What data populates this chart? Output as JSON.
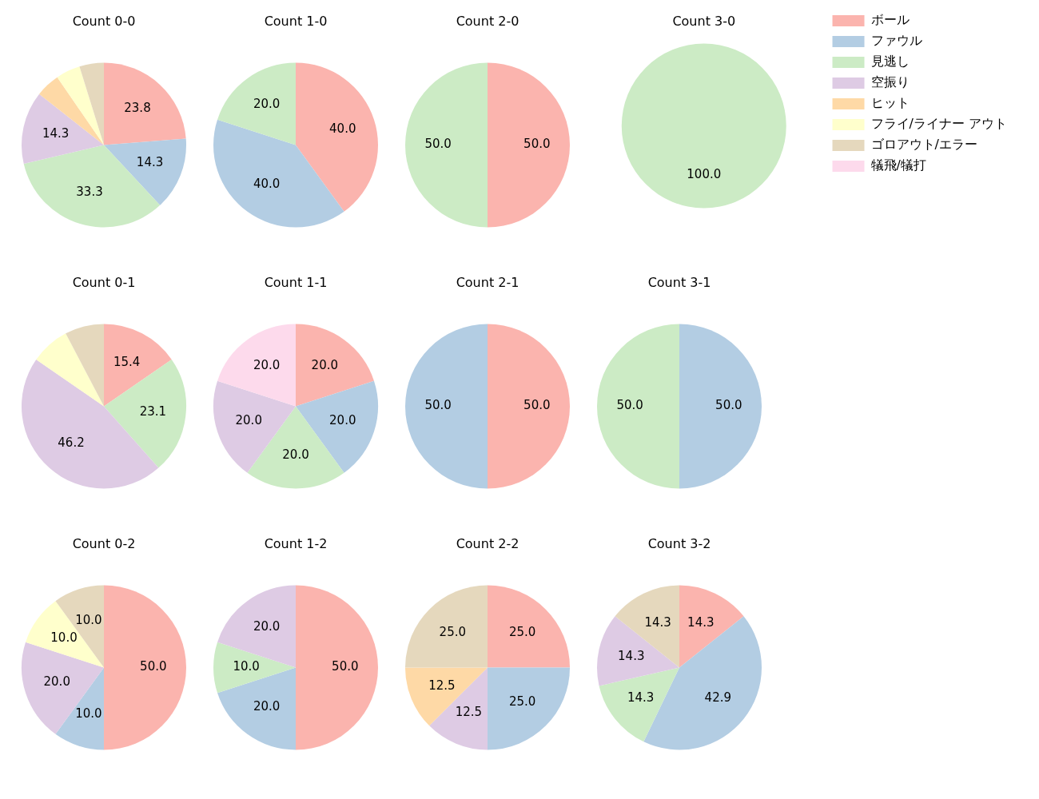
{
  "chart_data": [
    {
      "type": "pie",
      "title": "Count 0-0",
      "categories": [
        null,
        null,
        null,
        null,
        null,
        null,
        null,
        null
      ],
      "values": [
        23.8,
        14.3,
        33.3,
        14.3,
        4.8,
        4.8,
        4.8,
        0
      ],
      "colors": [
        "#fbb4ae",
        "#b3cde3",
        "#ccebc5",
        "#decbe4",
        "#fed9a6",
        "#ffffcc",
        "#e5d8bd",
        "#fddaec"
      ],
      "value_labels": [
        "23.8",
        "14.3",
        "33.3",
        "14.3",
        null,
        null,
        null,
        null
      ]
    },
    {
      "type": "pie",
      "title": "Count 1-0",
      "categories": [
        null,
        null,
        null,
        null,
        null,
        null,
        null,
        null
      ],
      "values": [
        40,
        40,
        20,
        0,
        0,
        0,
        0,
        0
      ],
      "colors": [
        "#fbb4ae",
        "#b3cde3",
        "#ccebc5",
        "#decbe4",
        "#fed9a6",
        "#ffffcc",
        "#e5d8bd",
        "#fddaec"
      ],
      "value_labels": [
        "40.0",
        "40.0",
        "20.0",
        null,
        null,
        null,
        null,
        null
      ]
    },
    {
      "type": "pie",
      "title": "Count 2-0",
      "categories": [
        null,
        null,
        null,
        null,
        null,
        null,
        null,
        null
      ],
      "values": [
        50,
        0,
        50,
        0,
        0,
        0,
        0,
        0
      ],
      "colors": [
        "#fbb4ae",
        "#b3cde3",
        "#ccebc5",
        "#decbe4",
        "#fed9a6",
        "#ffffcc",
        "#e5d8bd",
        "#fddaec"
      ],
      "value_labels": [
        "50.0",
        null,
        "50.0",
        null,
        null,
        null,
        null,
        null
      ]
    },
    {
      "type": "pie",
      "title": "Count 3-0",
      "categories": [
        "ボール",
        "ファウル",
        "見逃し",
        "空振り",
        "ヒット",
        "フライ/ライナー アウト",
        "ゴロアウト/エラー",
        "犠飛/犠打"
      ],
      "values": [
        0,
        0,
        100,
        0,
        0,
        0,
        0,
        0
      ],
      "colors": [
        "#fbb4ae",
        "#b3cde3",
        "#ccebc5",
        "#decbe4",
        "#fed9a6",
        "#ffffcc",
        "#e5d8bd",
        "#fddaec"
      ],
      "value_labels": [
        null,
        null,
        "100.0",
        null,
        null,
        null,
        null,
        null
      ],
      "legend": "right"
    },
    {
      "type": "pie",
      "title": "Count 0-1",
      "categories": [
        null,
        null,
        null,
        null,
        null,
        null,
        null,
        null
      ],
      "values": [
        15.4,
        0,
        23.1,
        46.2,
        0,
        7.7,
        7.7,
        0
      ],
      "colors": [
        "#fbb4ae",
        "#b3cde3",
        "#ccebc5",
        "#decbe4",
        "#fed9a6",
        "#ffffcc",
        "#e5d8bd",
        "#fddaec"
      ],
      "value_labels": [
        "15.4",
        null,
        "23.1",
        "46.2",
        null,
        null,
        null,
        null
      ]
    },
    {
      "type": "pie",
      "title": "Count 1-1",
      "categories": [
        null,
        null,
        null,
        null,
        null,
        null,
        null,
        null
      ],
      "values": [
        20,
        20,
        20,
        20,
        0,
        0,
        0,
        20
      ],
      "colors": [
        "#fbb4ae",
        "#b3cde3",
        "#ccebc5",
        "#decbe4",
        "#fed9a6",
        "#ffffcc",
        "#e5d8bd",
        "#fddaec"
      ],
      "value_labels": [
        "20.0",
        "20.0",
        "20.0",
        "20.0",
        null,
        null,
        null,
        "20.0"
      ]
    },
    {
      "type": "pie",
      "title": "Count 2-1",
      "categories": [
        null,
        null,
        null,
        null,
        null,
        null,
        null,
        null
      ],
      "values": [
        50,
        50,
        0,
        0,
        0,
        0,
        0,
        0
      ],
      "colors": [
        "#fbb4ae",
        "#b3cde3",
        "#ccebc5",
        "#decbe4",
        "#fed9a6",
        "#ffffcc",
        "#e5d8bd",
        "#fddaec"
      ],
      "value_labels": [
        "50.0",
        "50.0",
        null,
        null,
        null,
        null,
        null,
        null
      ]
    },
    {
      "type": "pie",
      "title": "Count 3-1",
      "categories": [
        null,
        null,
        null,
        null,
        null,
        null,
        null,
        null
      ],
      "values": [
        0,
        50,
        50,
        0,
        0,
        0,
        0,
        0
      ],
      "colors": [
        "#fbb4ae",
        "#b3cde3",
        "#ccebc5",
        "#decbe4",
        "#fed9a6",
        "#ffffcc",
        "#e5d8bd",
        "#fddaec"
      ],
      "value_labels": [
        null,
        "50.0",
        "50.0",
        null,
        null,
        null,
        null,
        null
      ]
    },
    {
      "type": "pie",
      "title": "Count 0-2",
      "categories": [
        null,
        null,
        null,
        null,
        null,
        null,
        null,
        null
      ],
      "values": [
        50,
        10,
        0,
        20,
        0,
        10,
        10,
        0
      ],
      "colors": [
        "#fbb4ae",
        "#b3cde3",
        "#ccebc5",
        "#decbe4",
        "#fed9a6",
        "#ffffcc",
        "#e5d8bd",
        "#fddaec"
      ],
      "value_labels": [
        "50.0",
        "10.0",
        null,
        "20.0",
        null,
        "10.0",
        "10.0",
        null
      ]
    },
    {
      "type": "pie",
      "title": "Count 1-2",
      "categories": [
        null,
        null,
        null,
        null,
        null,
        null,
        null,
        null
      ],
      "values": [
        50,
        20,
        10,
        20,
        0,
        0,
        0,
        0
      ],
      "colors": [
        "#fbb4ae",
        "#b3cde3",
        "#ccebc5",
        "#decbe4",
        "#fed9a6",
        "#ffffcc",
        "#e5d8bd",
        "#fddaec"
      ],
      "value_labels": [
        "50.0",
        "20.0",
        "10.0",
        "20.0",
        null,
        null,
        null,
        null
      ]
    },
    {
      "type": "pie",
      "title": "Count 2-2",
      "categories": [
        null,
        null,
        null,
        null,
        null,
        null,
        null,
        null
      ],
      "values": [
        25,
        25,
        0,
        12.5,
        12.5,
        0,
        25,
        0
      ],
      "colors": [
        "#fbb4ae",
        "#b3cde3",
        "#ccebc5",
        "#decbe4",
        "#fed9a6",
        "#ffffcc",
        "#e5d8bd",
        "#fddaec"
      ],
      "value_labels": [
        "25.0",
        "25.0",
        null,
        "12.5",
        "12.5",
        null,
        "25.0",
        null
      ]
    },
    {
      "type": "pie",
      "title": "Count 3-2",
      "categories": [
        null,
        null,
        null,
        null,
        null,
        null,
        null,
        null
      ],
      "values": [
        14.3,
        42.9,
        14.3,
        14.3,
        0,
        0,
        14.3,
        0
      ],
      "colors": [
        "#fbb4ae",
        "#b3cde3",
        "#ccebc5",
        "#decbe4",
        "#fed9a6",
        "#ffffcc",
        "#e5d8bd",
        "#fddaec"
      ],
      "value_labels": [
        "14.3",
        "42.9",
        "14.3",
        "14.3",
        null,
        null,
        "14.3",
        null
      ]
    }
  ]
}
